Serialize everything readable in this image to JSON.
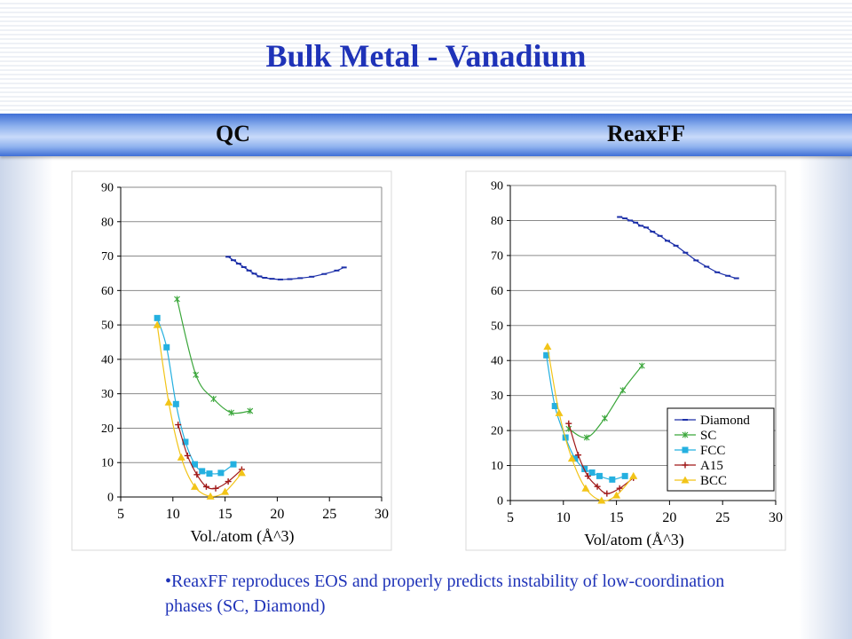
{
  "title": "Bulk Metal - Vanadium",
  "panel_labels": {
    "left": "QC",
    "right": "ReaxFF"
  },
  "note": "•ReaxFF reproduces EOS and properly predicts instability of low-coordination phases (SC, Diamond)",
  "colors": {
    "title": "#1f33b8",
    "Diamond": "#1c2fa8",
    "SC": "#3aa63a",
    "FCC": "#25b0e0",
    "A15": "#a01818",
    "BCC": "#f2c418"
  },
  "chart_data": [
    {
      "type": "line",
      "panel": "QC",
      "xlabel": "Vol./atom (Å^3)",
      "ylabel": "",
      "xlim": [
        5,
        30
      ],
      "ylim": [
        0,
        90
      ],
      "xticks": [
        5,
        10,
        15,
        20,
        25,
        30
      ],
      "yticks": [
        0,
        10,
        20,
        30,
        40,
        50,
        60,
        70,
        80,
        90
      ],
      "legend": null,
      "series": [
        {
          "name": "Diamond",
          "marker": "dash",
          "x": [
            15.3,
            15.8,
            16.3,
            16.8,
            17.3,
            17.8,
            18.3,
            18.8,
            19.5,
            20.3,
            21.2,
            22.2,
            23.3,
            24.5,
            25.7,
            26.4
          ],
          "y": [
            69.8,
            68.8,
            67.8,
            66.8,
            65.8,
            64.9,
            64.1,
            63.7,
            63.4,
            63.2,
            63.3,
            63.6,
            64.0,
            64.8,
            65.8,
            66.7
          ]
        },
        {
          "name": "SC",
          "marker": "star",
          "x": [
            10.4,
            12.2,
            13.9,
            15.6,
            17.4
          ],
          "y": [
            57.5,
            35.5,
            28.5,
            24.5,
            25.0
          ]
        },
        {
          "name": "FCC",
          "marker": "square",
          "x": [
            8.5,
            9.4,
            10.3,
            11.2,
            12.1,
            12.8,
            13.5,
            14.6,
            15.8
          ],
          "y": [
            52.0,
            43.5,
            27.0,
            16.0,
            9.5,
            7.5,
            6.8,
            7.0,
            9.5
          ]
        },
        {
          "name": "A15",
          "marker": "plus",
          "x": [
            10.5,
            11.4,
            12.3,
            13.2,
            14.1,
            15.3,
            16.6
          ],
          "y": [
            21.0,
            12.0,
            6.5,
            3.0,
            2.5,
            4.5,
            8.0
          ]
        },
        {
          "name": "BCC",
          "marker": "triangle",
          "x": [
            8.5,
            9.6,
            10.8,
            12.1,
            13.6,
            15.0,
            16.6
          ],
          "y": [
            50.0,
            27.5,
            11.5,
            3.0,
            0.2,
            1.5,
            7.0
          ]
        }
      ]
    },
    {
      "type": "line",
      "panel": "ReaxFF",
      "xlabel": "Vol/atom (Å^3)",
      "ylabel": "",
      "xlim": [
        5,
        30
      ],
      "ylim": [
        0,
        90
      ],
      "xticks": [
        5,
        10,
        15,
        20,
        25,
        30
      ],
      "yticks": [
        0,
        10,
        20,
        30,
        40,
        50,
        60,
        70,
        80,
        90
      ],
      "legend": "lower-right",
      "series": [
        {
          "name": "Diamond",
          "marker": "dash",
          "x": [
            15.3,
            15.8,
            16.3,
            16.8,
            17.3,
            17.8,
            18.4,
            19.1,
            19.8,
            20.6,
            21.5,
            22.5,
            23.5,
            24.5,
            25.5,
            26.3
          ],
          "y": [
            81.0,
            80.6,
            80.0,
            79.4,
            78.5,
            78.0,
            76.8,
            75.6,
            74.2,
            72.8,
            70.8,
            68.6,
            66.8,
            65.2,
            64.2,
            63.5
          ]
        },
        {
          "name": "SC",
          "marker": "star",
          "x": [
            10.5,
            12.2,
            13.9,
            15.6,
            17.4
          ],
          "y": [
            20.5,
            18.0,
            23.5,
            31.5,
            38.5
          ]
        },
        {
          "name": "FCC",
          "marker": "square",
          "x": [
            8.4,
            9.2,
            10.2,
            11.1,
            12.0,
            12.7,
            13.4,
            14.6,
            15.8
          ],
          "y": [
            41.5,
            27.0,
            18.0,
            12.0,
            9.0,
            8.0,
            7.0,
            6.0,
            7.0
          ]
        },
        {
          "name": "A15",
          "marker": "plus",
          "x": [
            10.5,
            11.4,
            12.3,
            13.2,
            14.1,
            15.3,
            16.6
          ],
          "y": [
            22.0,
            13.0,
            7.0,
            4.0,
            2.0,
            3.5,
            6.5
          ]
        },
        {
          "name": "BCC",
          "marker": "triangle",
          "x": [
            8.5,
            9.6,
            10.8,
            12.1,
            13.6,
            15.0,
            16.6
          ],
          "y": [
            44.0,
            25.0,
            12.0,
            3.5,
            0.0,
            1.5,
            7.0
          ]
        }
      ]
    }
  ]
}
